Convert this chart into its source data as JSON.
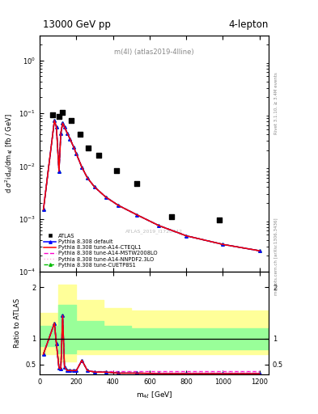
{
  "title_top": "13000 GeV pp",
  "title_right": "4-lepton",
  "annotation": "m(4l) (atlas2019-4lline)",
  "watermark": "ATLAS_2019_I1720442",
  "right_label_top": "Rivet 3.1.10, ≥ 3.4M events",
  "right_label_bot": "mcplots.cern.ch [arXiv:1306.3436]",
  "ylabel_ratio": "Ratio to ATLAS",
  "xlabel": "m_{4ell} [GeV]",
  "ylim_main": [
    0.0001,
    3.0
  ],
  "ylim_ratio": [
    0.3,
    2.3
  ],
  "xlim": [
    0,
    1250
  ],
  "data_x": [
    70,
    105,
    125,
    170,
    220,
    265,
    320,
    420,
    530,
    720,
    980
  ],
  "data_y": [
    0.095,
    0.087,
    0.105,
    0.073,
    0.04,
    0.022,
    0.016,
    0.0082,
    0.0047,
    0.0011,
    0.00095
  ],
  "mc_x": [
    20,
    80,
    91,
    105,
    115,
    125,
    135,
    150,
    165,
    185,
    200,
    230,
    260,
    300,
    360,
    430,
    530,
    650,
    800,
    1000,
    1200
  ],
  "mc_default_y": [
    0.0015,
    0.073,
    0.055,
    0.008,
    0.042,
    0.065,
    0.055,
    0.042,
    0.033,
    0.023,
    0.017,
    0.0095,
    0.006,
    0.004,
    0.0026,
    0.0018,
    0.0012,
    0.00075,
    0.00048,
    0.00033,
    0.00025
  ],
  "mc_cteq_y": [
    0.0015,
    0.073,
    0.055,
    0.008,
    0.042,
    0.065,
    0.055,
    0.042,
    0.033,
    0.023,
    0.017,
    0.0095,
    0.006,
    0.004,
    0.0026,
    0.0018,
    0.0012,
    0.00075,
    0.00048,
    0.00033,
    0.00025
  ],
  "mc_mstw_y": [
    0.0015,
    0.073,
    0.055,
    0.008,
    0.042,
    0.065,
    0.055,
    0.042,
    0.033,
    0.023,
    0.017,
    0.0095,
    0.006,
    0.004,
    0.0026,
    0.0018,
    0.0012,
    0.00075,
    0.00048,
    0.00033,
    0.00025
  ],
  "mc_nnpdf_y": [
    0.0015,
    0.073,
    0.055,
    0.008,
    0.042,
    0.065,
    0.055,
    0.042,
    0.033,
    0.023,
    0.017,
    0.0095,
    0.006,
    0.004,
    0.0026,
    0.0018,
    0.0012,
    0.00075,
    0.00048,
    0.00033,
    0.00025
  ],
  "mc_cuetp_y": [
    0.0015,
    0.073,
    0.055,
    0.008,
    0.042,
    0.065,
    0.055,
    0.042,
    0.033,
    0.023,
    0.017,
    0.0095,
    0.006,
    0.004,
    0.0026,
    0.0018,
    0.0012,
    0.00075,
    0.00048,
    0.00033,
    0.00025
  ],
  "ratio_x": [
    20,
    80,
    91,
    105,
    115,
    125,
    135,
    150,
    165,
    185,
    200,
    230,
    260,
    300,
    360,
    430,
    530,
    650,
    800,
    1000,
    1200
  ],
  "ratio_default": [
    0.7,
    1.3,
    0.9,
    0.43,
    0.41,
    1.45,
    0.45,
    0.38,
    0.38,
    0.38,
    0.38,
    0.58,
    0.38,
    0.35,
    0.35,
    0.33,
    0.33,
    0.32,
    0.32,
    0.32,
    0.32
  ],
  "ratio_cteq": [
    0.7,
    1.3,
    0.9,
    0.43,
    0.41,
    1.45,
    0.45,
    0.38,
    0.38,
    0.38,
    0.38,
    0.58,
    0.38,
    0.35,
    0.35,
    0.33,
    0.33,
    0.32,
    0.32,
    0.32,
    0.32
  ],
  "ratio_mstw": [
    0.7,
    1.3,
    0.9,
    0.43,
    0.41,
    1.45,
    0.45,
    0.38,
    0.38,
    0.38,
    0.38,
    0.58,
    0.38,
    0.36,
    0.36,
    0.36,
    0.36,
    0.36,
    0.36,
    0.36,
    0.36
  ],
  "ratio_nnpdf": [
    0.7,
    1.3,
    0.9,
    0.43,
    0.41,
    1.45,
    0.45,
    0.38,
    0.38,
    0.38,
    0.38,
    0.58,
    0.38,
    0.35,
    0.35,
    0.35,
    0.35,
    0.35,
    0.35,
    0.35,
    0.35
  ],
  "ratio_cuetp": [
    0.7,
    1.3,
    0.9,
    0.43,
    0.41,
    1.45,
    0.45,
    0.38,
    0.38,
    0.38,
    0.38,
    0.58,
    0.38,
    0.35,
    0.35,
    0.33,
    0.33,
    0.32,
    0.32,
    0.32,
    0.32
  ],
  "band_x": [
    0,
    100,
    200,
    350,
    500,
    1250
  ],
  "band_yellow_lo": [
    0.7,
    0.55,
    0.7,
    0.7,
    0.7,
    0.7
  ],
  "band_yellow_hi": [
    1.5,
    2.05,
    1.75,
    1.6,
    1.55,
    1.5
  ],
  "band_green_lo": [
    0.85,
    0.72,
    0.8,
    0.8,
    0.8,
    0.8
  ],
  "band_green_hi": [
    1.25,
    1.65,
    1.35,
    1.25,
    1.2,
    1.18
  ],
  "color_default": "#0000ff",
  "color_cteq": "#ff0000",
  "color_mstw": "#ff00cc",
  "color_nnpdf": "#ffaadd",
  "color_cuetp": "#00bb00",
  "color_data": "#000000",
  "color_yellow_band": "#ffff99",
  "color_green_band": "#99ff99",
  "legend_labels": [
    "ATLAS",
    "Pythia 8.308 default",
    "Pythia 8.308 tune-A14-CTEQL1",
    "Pythia 8.308 tune-A14-MSTW2008LO",
    "Pythia 8.308 tune-A14-NNPDF2.3LO",
    "Pythia 8.308 tune-CUETP8S1"
  ]
}
